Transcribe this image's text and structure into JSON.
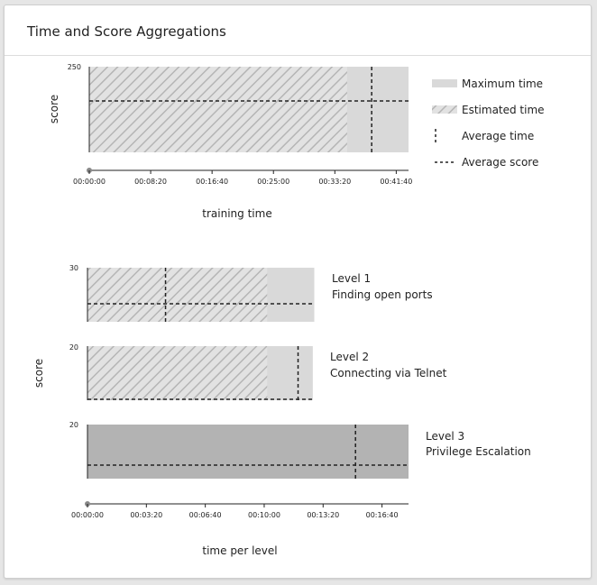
{
  "card": {
    "title": "Time and Score Aggregations"
  },
  "colors": {
    "maximum_fill": "#d9d9d9",
    "estimated_fill": "#e2e2e2",
    "hatch": "#b5b5b5",
    "level3_fill": "#b3b3b3",
    "axis": "#222222"
  },
  "chart_data": [
    {
      "type": "bar",
      "title": "",
      "xlabel": "training time",
      "ylabel": "score",
      "xlim_seconds": [
        0,
        2600
      ],
      "ylim": [
        0,
        250
      ],
      "x_ticks": [
        "00:00:00",
        "00:08:20",
        "00:16:40",
        "00:25:00",
        "00:33:20",
        "00:41:40"
      ],
      "x_tick_values_seconds": [
        0,
        500,
        1000,
        1500,
        2000,
        2500
      ],
      "y_tick_labels": [
        "250"
      ],
      "maximum_time_seconds": 2600,
      "estimated_time_seconds": 2100,
      "average_time_seconds": 2300,
      "average_score": 150,
      "legend": [
        "Maximum time",
        "Estimated time",
        "Average time",
        "Average score"
      ],
      "legend_position": "right"
    },
    {
      "type": "bar",
      "title": "",
      "xlabel": "time per level",
      "ylabel": "score",
      "xlim_seconds": [
        0,
        1090
      ],
      "x_ticks": [
        "00:00:00",
        "00:03:20",
        "00:06:40",
        "00:10:00",
        "00:13:20",
        "00:16:40"
      ],
      "x_tick_values_seconds": [
        0,
        200,
        400,
        600,
        800,
        1000
      ],
      "levels": [
        {
          "name": "Level 1",
          "subtitle": "Finding open ports",
          "max_score_label": "30",
          "max_score": 30,
          "maximum_time_seconds": 770,
          "estimated_time_seconds": 610,
          "average_time_seconds": 265,
          "average_score": 10
        },
        {
          "name": "Level 2",
          "subtitle": "Connecting via Telnet",
          "max_score_label": "20",
          "max_score": 20,
          "maximum_time_seconds": 765,
          "estimated_time_seconds": 610,
          "average_time_seconds": 715,
          "average_score": 0
        },
        {
          "name": "Level 3",
          "subtitle": "Privilege Escalation",
          "max_score_label": "20",
          "max_score": 20,
          "maximum_time_seconds": 1090,
          "estimated_time_seconds": 0,
          "average_time_seconds": 910,
          "average_score": 5
        }
      ]
    }
  ]
}
